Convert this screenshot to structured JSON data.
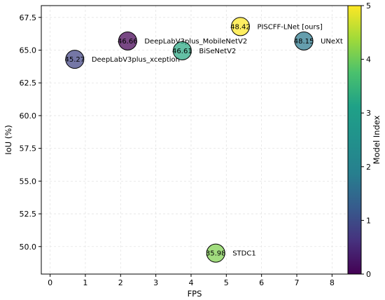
{
  "chart_data": {
    "type": "scatter",
    "title": "",
    "xlabel": "FPS",
    "ylabel": "IoU (%)",
    "xlim": [
      -0.25,
      8.45
    ],
    "ylim": [
      47.9,
      68.4
    ],
    "xticks": [
      0,
      1,
      2,
      3,
      4,
      5,
      6,
      7,
      8
    ],
    "yticks": [
      50.0,
      52.5,
      55.0,
      57.5,
      60.0,
      62.5,
      65.0,
      67.5
    ],
    "xtick_labels": [
      "0",
      "1",
      "2",
      "3",
      "4",
      "5",
      "6",
      "7",
      "8"
    ],
    "ytick_labels": [
      "50.0",
      "52.5",
      "55.0",
      "57.5",
      "60.0",
      "62.5",
      "65.0",
      "67.5"
    ],
    "grid": true,
    "colormap": "viridis",
    "colorbar": {
      "label": "Model Index",
      "range": [
        0,
        5
      ],
      "ticks": [
        0,
        1,
        2,
        3,
        4,
        5
      ],
      "tick_labels": [
        "0",
        "1",
        "2",
        "3",
        "4",
        "5"
      ]
    },
    "points": [
      {
        "label": "DeepLabV3plus_MobileNetV2",
        "x": 2.2,
        "y": 65.7,
        "value": "46.66",
        "model_index": 0
      },
      {
        "label": "DeepLabV3plus_xception",
        "x": 0.7,
        "y": 64.3,
        "value": "45.27",
        "model_index": 1
      },
      {
        "label": "UNeXt",
        "x": 7.2,
        "y": 65.7,
        "value": "48.15",
        "model_index": 2
      },
      {
        "label": "BiSeNetV2",
        "x": 3.75,
        "y": 64.95,
        "value": "46.61",
        "model_index": 3
      },
      {
        "label": "STDC1",
        "x": 4.7,
        "y": 49.5,
        "value": "35.98",
        "model_index": 4
      },
      {
        "label": "PISCFF-LNet [ours]",
        "x": 5.4,
        "y": 66.8,
        "value": "48.42",
        "model_index": 5
      }
    ]
  }
}
